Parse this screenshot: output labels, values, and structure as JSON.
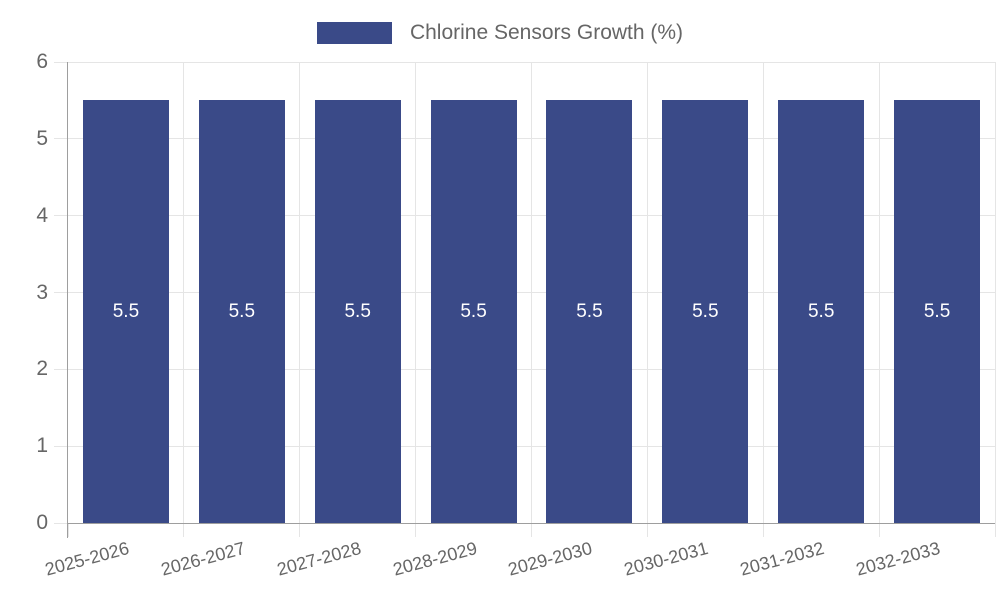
{
  "chart_data": {
    "type": "bar",
    "title": "Chlorine Sensors Growth (%)",
    "categories": [
      "2025-2026",
      "2026-2027",
      "2027-2028",
      "2028-2029",
      "2029-2030",
      "2030-2031",
      "2031-2032",
      "2032-2033"
    ],
    "series": [
      {
        "name": "Chlorine Sensors Growth (%)",
        "values": [
          5.5,
          5.5,
          5.5,
          5.5,
          5.5,
          5.5,
          5.5,
          5.5
        ]
      }
    ],
    "value_labels": [
      "5.5",
      "5.5",
      "5.5",
      "5.5",
      "5.5",
      "5.5",
      "5.5",
      "5.5"
    ],
    "xlabel": "",
    "ylabel": "",
    "ylim": [
      0,
      6
    ],
    "yticks": [
      0,
      1,
      2,
      3,
      4,
      5,
      6
    ],
    "grid": true,
    "legend_position": "top",
    "x_label_rotation_deg": -15
  },
  "colors": {
    "bar": "#3A4A88",
    "grid": "#e5e5e5",
    "axis": "#9e9e9e",
    "text": "#666666",
    "bar_label": "#ffffff"
  }
}
